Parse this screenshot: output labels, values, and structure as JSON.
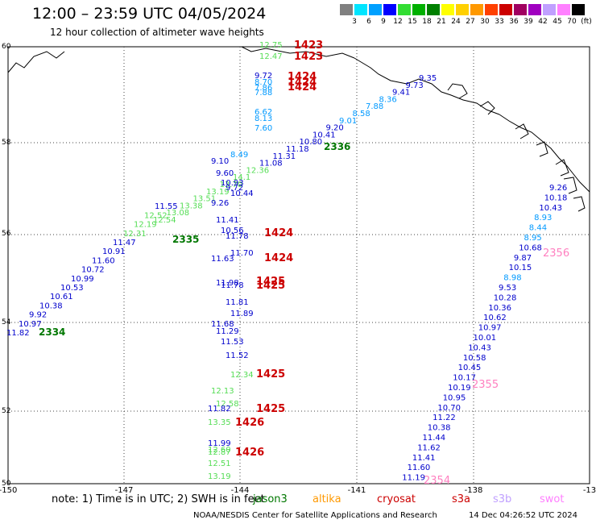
{
  "header": {
    "title": "12:00 – 23:59 UTC 04/05/2024",
    "subtitle": "12 hour collection of altimeter wave heights"
  },
  "colorbar": {
    "units": "(ft)",
    "entries": [
      {
        "label": "3",
        "color": "#808080"
      },
      {
        "label": "6",
        "color": "#00e5ff"
      },
      {
        "label": "9",
        "color": "#00a0ff"
      },
      {
        "label": "12",
        "color": "#0000ff"
      },
      {
        "label": "15",
        "color": "#33dd33"
      },
      {
        "label": "18",
        "color": "#00b000"
      },
      {
        "label": "21",
        "color": "#008000"
      },
      {
        "label": "24",
        "color": "#ffff00"
      },
      {
        "label": "27",
        "color": "#ffd000"
      },
      {
        "label": "30",
        "color": "#ff9900"
      },
      {
        "label": "33",
        "color": "#ff4000"
      },
      {
        "label": "36",
        "color": "#cc0000"
      },
      {
        "label": "39",
        "color": "#a00060"
      },
      {
        "label": "42",
        "color": "#a000c0"
      },
      {
        "label": "45",
        "color": "#c0a0ff"
      },
      {
        "label": "70",
        "color": "#ff80ff"
      },
      {
        "label": "",
        "color": "#000000"
      }
    ]
  },
  "axes": {
    "lon_ticks": [
      "-150",
      "-147",
      "-144",
      "-141",
      "-138",
      "-13"
    ],
    "lat_ticks": [
      "60",
      "58",
      "56",
      "54",
      "52",
      "50"
    ]
  },
  "tracks": {
    "track_2334": {
      "color": "#0000cc",
      "time_label": "2334",
      "time_color": "#007700",
      "points": [
        {
          "v": "11.82",
          "c": "#0000cc",
          "dx": -2
        },
        {
          "v": "10.97",
          "c": "#0000cc",
          "dx": 0
        },
        {
          "v": "9.92",
          "c": "#0000cc",
          "dx": 0
        },
        {
          "v": "10.38",
          "c": "#0000cc",
          "dx": 0
        },
        {
          "v": "10.61",
          "c": "#0000cc",
          "dx": 0
        },
        {
          "v": "10.53",
          "c": "#0000cc",
          "dx": 0
        },
        {
          "v": "10.99",
          "c": "#0000cc",
          "dx": 0
        },
        {
          "v": "10.72",
          "c": "#0000cc",
          "dx": 0
        },
        {
          "v": "11.60",
          "c": "#0000cc",
          "dx": 0
        },
        {
          "v": "10.91",
          "c": "#0000cc",
          "dx": 0
        },
        {
          "v": "11.47",
          "c": "#0000cc",
          "dx": 0
        },
        {
          "v": "12.31",
          "c": "#55dd55",
          "dx": 0
        },
        {
          "v": "12.19",
          "c": "#55dd55",
          "dx": 0
        },
        {
          "v": "12.52",
          "c": "#55dd55",
          "dx": 0
        },
        {
          "v": "11.55",
          "c": "#0000cc",
          "dx": 0
        }
      ]
    },
    "track_2335_label": "2335",
    "track_2335_extra": [
      {
        "v": "12.54",
        "c": "#55dd55"
      },
      {
        "v": "13.08",
        "c": "#55dd55"
      },
      {
        "v": "13.38",
        "c": "#55dd55"
      },
      {
        "v": "13.51",
        "c": "#55dd55"
      },
      {
        "v": "13.19",
        "c": "#55dd55"
      },
      {
        "v": "13.70",
        "c": "#55dd55"
      },
      {
        "v": "14.1",
        "c": "#55dd55"
      },
      {
        "v": "12.36",
        "c": "#55dd55"
      },
      {
        "v": "11.08",
        "c": "#0000cc"
      },
      {
        "v": "11.31",
        "c": "#0000cc"
      },
      {
        "v": "11.18",
        "c": "#0000cc"
      },
      {
        "v": "10.80",
        "c": "#0000cc"
      },
      {
        "v": "10.41",
        "c": "#0000cc"
      },
      {
        "v": "9.20",
        "c": "#0000cc"
      },
      {
        "v": "9.01",
        "c": "#0099ff"
      },
      {
        "v": "8.58",
        "c": "#0099ff"
      },
      {
        "v": "7.88",
        "c": "#0099ff"
      },
      {
        "v": "8.36",
        "c": "#0099ff"
      },
      {
        "v": "9.41",
        "c": "#0000cc"
      },
      {
        "v": "9.73",
        "c": "#0000cc"
      },
      {
        "v": "9.35",
        "c": "#0000cc"
      }
    ],
    "track_2336_label": "2336",
    "track_vertical": [
      {
        "v": "12.75",
        "c": "#55dd55"
      },
      {
        "v": "12.47",
        "c": "#55dd55"
      },
      {
        "v": "9.72",
        "c": "#0000cc"
      },
      {
        "v": "8.70",
        "c": "#0099ff"
      },
      {
        "v": "7.86",
        "c": "#0099ff"
      },
      {
        "v": "7.88",
        "c": "#0099ff"
      },
      {
        "v": "6.62",
        "c": "#0099ff"
      },
      {
        "v": "8.13",
        "c": "#0099ff"
      },
      {
        "v": "7.60",
        "c": "#0099ff"
      },
      {
        "v": "8.49",
        "c": "#0099ff"
      },
      {
        "v": "9.10",
        "c": "#0000cc"
      },
      {
        "v": "9.60",
        "c": "#0000cc"
      },
      {
        "v": "10.93",
        "c": "#0000cc"
      },
      {
        "v": "9.72",
        "c": "#0000cc"
      },
      {
        "v": "10.44",
        "c": "#0000cc"
      },
      {
        "v": "9.26",
        "c": "#0000cc"
      },
      {
        "v": "11.41",
        "c": "#0000cc"
      },
      {
        "v": "10.56",
        "c": "#0000cc"
      },
      {
        "v": "11.78",
        "c": "#0000cc"
      },
      {
        "v": "11.70",
        "c": "#0000cc"
      },
      {
        "v": "11.63",
        "c": "#0000cc"
      },
      {
        "v": "11.98",
        "c": "#0000cc"
      },
      {
        "v": "11.78",
        "c": "#0000cc"
      },
      {
        "v": "11.81",
        "c": "#0000cc"
      },
      {
        "v": "11.89",
        "c": "#0000cc"
      },
      {
        "v": "11.68",
        "c": "#0000cc"
      },
      {
        "v": "11.29",
        "c": "#0000cc"
      },
      {
        "v": "11.53",
        "c": "#0000cc"
      },
      {
        "v": "11.52",
        "c": "#0000cc"
      },
      {
        "v": "12.34",
        "c": "#55dd55"
      },
      {
        "v": "12.13",
        "c": "#55dd55"
      },
      {
        "v": "12.58",
        "c": "#55dd55"
      },
      {
        "v": "11.82",
        "c": "#0000cc"
      },
      {
        "v": "13.35",
        "c": "#55dd55"
      },
      {
        "v": "11.99",
        "c": "#0000cc"
      },
      {
        "v": "12.60",
        "c": "#55dd55"
      },
      {
        "v": "12.87",
        "c": "#55dd55"
      },
      {
        "v": "12.51",
        "c": "#55dd55"
      },
      {
        "v": "13.19",
        "c": "#55dd55"
      }
    ],
    "vertical_times": [
      "1423",
      "1423",
      "1424",
      "1424",
      "1424",
      "1424",
      "1424",
      "1425",
      "1425",
      "1425",
      "1425",
      "1426",
      "1426",
      "1426"
    ],
    "track_right": [
      {
        "v": "9.26",
        "c": "#0000cc"
      },
      {
        "v": "10.18",
        "c": "#0000cc"
      },
      {
        "v": "10.43",
        "c": "#0000cc"
      },
      {
        "v": "8.93",
        "c": "#0099ff"
      },
      {
        "v": "8.44",
        "c": "#0099ff"
      },
      {
        "v": "8.95",
        "c": "#0099ff"
      },
      {
        "v": "10.68",
        "c": "#0000cc"
      },
      {
        "v": "9.87",
        "c": "#0000cc"
      },
      {
        "v": "10.15",
        "c": "#0000cc"
      },
      {
        "v": "8.98",
        "c": "#0099ff"
      },
      {
        "v": "9.53",
        "c": "#0000cc"
      },
      {
        "v": "10.28",
        "c": "#0000cc"
      },
      {
        "v": "10.36",
        "c": "#0000cc"
      },
      {
        "v": "10.62",
        "c": "#0000cc"
      },
      {
        "v": "10.97",
        "c": "#0000cc"
      },
      {
        "v": "10.01",
        "c": "#0000cc"
      },
      {
        "v": "10.43",
        "c": "#0000cc"
      },
      {
        "v": "10.58",
        "c": "#0000cc"
      },
      {
        "v": "10.45",
        "c": "#0000cc"
      },
      {
        "v": "10.17",
        "c": "#0000cc"
      },
      {
        "v": "10.19",
        "c": "#0000cc"
      },
      {
        "v": "10.95",
        "c": "#0000cc"
      },
      {
        "v": "10.70",
        "c": "#0000cc"
      },
      {
        "v": "11.22",
        "c": "#0000cc"
      },
      {
        "v": "10.38",
        "c": "#0000cc"
      },
      {
        "v": "11.44",
        "c": "#0000cc"
      },
      {
        "v": "11.62",
        "c": "#0000cc"
      },
      {
        "v": "11.41",
        "c": "#0000cc"
      },
      {
        "v": "11.60",
        "c": "#0000cc"
      },
      {
        "v": "11.19",
        "c": "#0000cc"
      }
    ],
    "right_times": [
      "2356",
      "2355",
      "2354"
    ]
  },
  "footer": {
    "note": "note:  1) Time is in UTC; 2) SWH is in feet",
    "missions": [
      {
        "name": "jason3",
        "color": "#007700"
      },
      {
        "name": "altika",
        "color": "#ff9900"
      },
      {
        "name": "cryosat",
        "color": "#cc0000"
      },
      {
        "name": "s3a",
        "color": "#cc0000"
      },
      {
        "name": "s3b",
        "color": "#c0a0ff"
      },
      {
        "name": "swot",
        "color": "#ff80ff"
      }
    ],
    "credit": "NOAA/NESDIS Center for Satellite Applications and Research",
    "timestamp": "14 Dec 04:26:52 UTC 2024"
  }
}
